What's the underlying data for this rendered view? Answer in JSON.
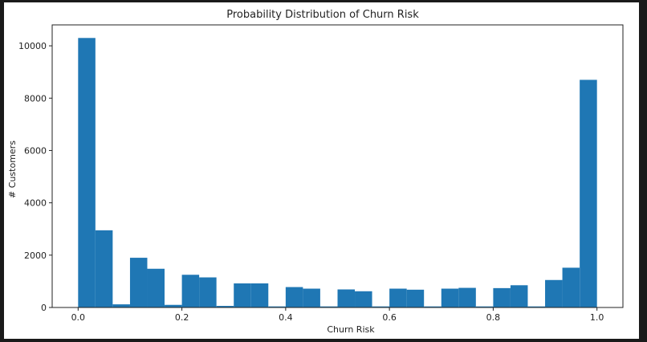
{
  "chart_data": {
    "type": "bar",
    "title": "Probability Distribution of Churn Risk",
    "xlabel": "Churn Risk",
    "ylabel": "# Customers",
    "xlim": [
      -0.05,
      1.05
    ],
    "ylim": [
      0,
      10800
    ],
    "x_ticks": [
      0.0,
      0.2,
      0.4,
      0.6,
      0.8,
      1.0
    ],
    "x_tick_labels": [
      "0.0",
      "0.2",
      "0.4",
      "0.6",
      "0.8",
      "1.0"
    ],
    "y_ticks": [
      0,
      2000,
      4000,
      6000,
      8000,
      10000
    ],
    "y_tick_labels": [
      "0",
      "2000",
      "4000",
      "6000",
      "8000",
      "10000"
    ],
    "bin_width": 0.0333,
    "bin_starts": [
      0.0,
      0.0333,
      0.0667,
      0.1,
      0.1333,
      0.1667,
      0.2,
      0.2333,
      0.2667,
      0.3,
      0.3333,
      0.3667,
      0.4,
      0.4333,
      0.4667,
      0.5,
      0.5333,
      0.5667,
      0.6,
      0.6333,
      0.6667,
      0.7,
      0.7333,
      0.7667,
      0.8,
      0.8333,
      0.8667,
      0.9,
      0.9333,
      0.9667
    ],
    "values": [
      10300,
      2950,
      120,
      1900,
      1480,
      100,
      1250,
      1150,
      60,
      920,
      920,
      40,
      780,
      720,
      40,
      690,
      620,
      40,
      720,
      680,
      40,
      720,
      750,
      40,
      740,
      850,
      40,
      1050,
      1520,
      8700
    ],
    "bar_color": "#1f77b4",
    "grid": false,
    "legend": "none"
  }
}
